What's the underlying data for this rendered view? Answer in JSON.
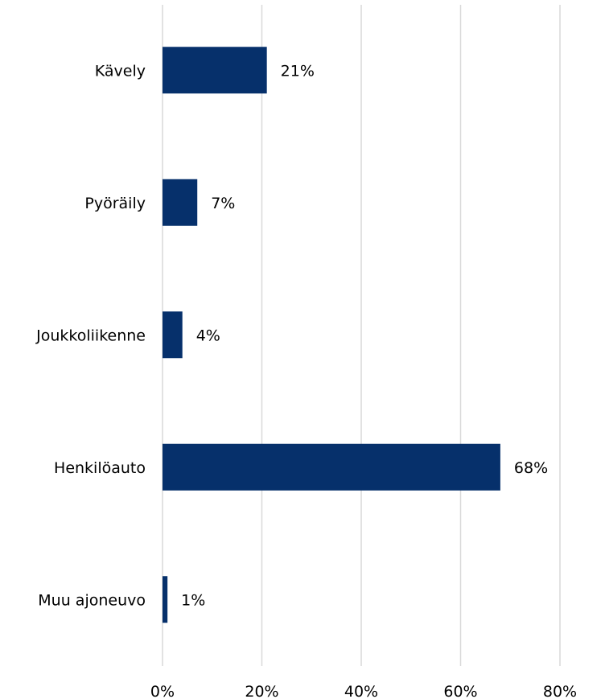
{
  "chart_data": {
    "type": "bar",
    "orientation": "horizontal",
    "categories": [
      "Kävely",
      "Pyöräily",
      "Joukkoliikenne",
      "Henkilöauto",
      "Muu ajoneuvo"
    ],
    "values": [
      21,
      7,
      4,
      68,
      1
    ],
    "value_labels": [
      "21%",
      "7%",
      "4%",
      "68%",
      "1%"
    ],
    "xlim": [
      0,
      80
    ],
    "x_ticks": [
      0,
      20,
      40,
      60,
      80
    ],
    "x_tick_labels": [
      "0%",
      "20%",
      "40%",
      "60%",
      "80%"
    ],
    "grid": "vertical",
    "bar_color": "#06306b",
    "grid_color": "#d9d9d9"
  }
}
